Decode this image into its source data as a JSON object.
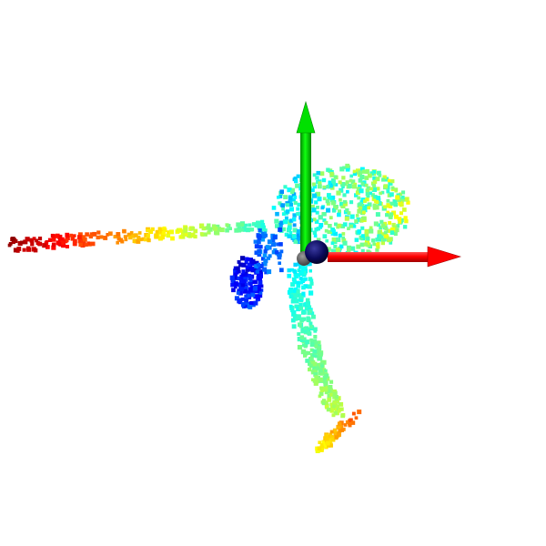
{
  "scene": {
    "background": "#ffffff",
    "point_colormap": "jet",
    "point_colormap_stops": [
      "#00008f",
      "#0000ff",
      "#00bfff",
      "#00ffff",
      "#80ff80",
      "#ffff00",
      "#ff8000",
      "#ff0000",
      "#8b0000"
    ],
    "axes": [
      {
        "name": "x-axis",
        "color": "#ff0000",
        "direction": "right"
      },
      {
        "name": "y-axis",
        "color": "#00ff00",
        "direction": "up"
      },
      {
        "name": "z-axis",
        "color": "#0000ff",
        "direction": "toward-viewer"
      }
    ],
    "origin_markers": [
      {
        "name": "origin-sphere-navy",
        "color": "#0a0a5a"
      },
      {
        "name": "origin-sphere-gray",
        "color": "#555555"
      }
    ],
    "clusters": [
      {
        "name": "tail-cluster",
        "color": "#e00000"
      },
      {
        "name": "arm-cluster",
        "color": "#ff9900"
      },
      {
        "name": "hand-cluster",
        "color": "#ffe000"
      },
      {
        "name": "head-cluster",
        "color": "#40e0ff"
      },
      {
        "name": "chest-cluster",
        "color": "#90ff60"
      },
      {
        "name": "back-cluster",
        "color": "#0000c8"
      },
      {
        "name": "leg-cluster",
        "color": "#30d0f0"
      },
      {
        "name": "foot-cluster",
        "color": "#d0ff30"
      }
    ]
  }
}
